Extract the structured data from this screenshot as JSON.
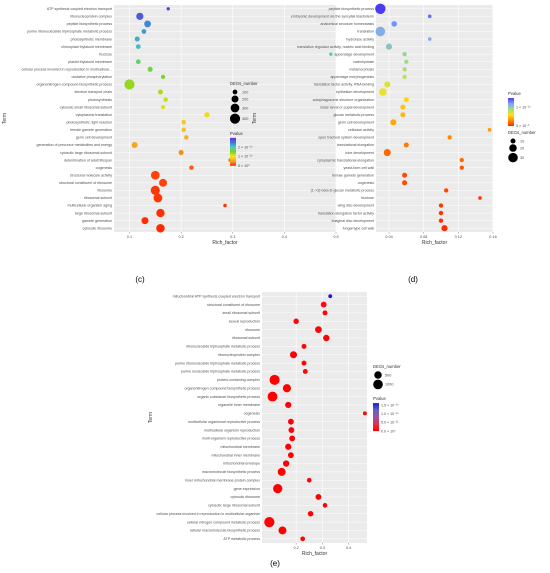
{
  "page": {
    "background": "#ffffff"
  },
  "style": {
    "panel_bg": "#ebebeb",
    "grid_color": "#ffffff",
    "text_color": "#4d4d4d",
    "gradient_c": [
      "#6b2bdc",
      "#3c78d8",
      "#45d0c0",
      "#7ed321",
      "#f5e61c",
      "#f5a623",
      "#ff2a00"
    ],
    "gradient_d": [
      "#4a3cf0",
      "#7ea1ff",
      "#9ae07e",
      "#ffe11c",
      "#ff8a00",
      "#ff2a00"
    ],
    "gradient_e": [
      "#1a1ad4",
      "#6060c8",
      "#a050a0",
      "#e0304a",
      "#ff0000"
    ]
  },
  "chart_data": [
    {
      "id": "c",
      "type": "scatter",
      "panel_label": "(c)",
      "xlabel": "Rich_factor",
      "ylabel": "Term",
      "xlim": [
        0.07,
        0.5
      ],
      "xticks": [
        0.1,
        0.2,
        0.3,
        0.4,
        0.5
      ],
      "color_scale": {
        "title": "Pvalue",
        "min": 0,
        "max": 3e-10,
        "ticks": [
          {
            "value": 2e-10,
            "label": "2 × 10⁻¹⁰"
          },
          {
            "value": 1e-10,
            "label": "1 × 10⁻¹⁰"
          },
          {
            "value": 0,
            "label": "5 × 10⁰"
          }
        ]
      },
      "size_scale": {
        "title": "DEGs_number",
        "min": 50,
        "max": 420,
        "ticks": [
          100,
          200,
          300,
          400
        ]
      },
      "points": [
        {
          "term": "ATP synthesis coupled electron transport",
          "x": 0.175,
          "count": 55,
          "p": 2.9e-10
        },
        {
          "term": "ribonucleoprotein complex",
          "x": 0.12,
          "count": 210,
          "p": 2.7e-10
        },
        {
          "term": "peptide biosynthetic process",
          "x": 0.135,
          "count": 190,
          "p": 2.4e-10
        },
        {
          "term": "purine ribonucleoside triphosphate metabolic process",
          "x": 0.128,
          "count": 100,
          "p": 2.3e-10
        },
        {
          "term": "photosynthetic membrane",
          "x": 0.115,
          "count": 110,
          "p": 2.2e-10
        },
        {
          "term": "chloroplast thylakoid membrane",
          "x": 0.117,
          "count": 100,
          "p": 2.1e-10
        },
        {
          "term": "fructose",
          "x": 0.49,
          "count": 55,
          "p": 1.9e-10
        },
        {
          "term": "plastid thylakoid membrane",
          "x": 0.117,
          "count": 100,
          "p": 1.75e-10
        },
        {
          "term": "cellular process involved in reproduction in multicellular...",
          "x": 0.14,
          "count": 110,
          "p": 1.6e-10
        },
        {
          "term": "oxidative phosphorylation",
          "x": 0.165,
          "count": 80,
          "p": 1.5e-10
        },
        {
          "term": "organonitrogen compound biosynthetic process",
          "x": 0.1,
          "count": 400,
          "p": 1.4e-10
        },
        {
          "term": "electron transport chain",
          "x": 0.16,
          "count": 110,
          "p": 1.3e-10
        },
        {
          "term": "photosynthesis",
          "x": 0.17,
          "count": 90,
          "p": 1.2e-10
        },
        {
          "term": "cytosolic small ribosomal subunit",
          "x": 0.165,
          "count": 80,
          "p": 1.1e-10
        },
        {
          "term": "cytoplasmic translation",
          "x": 0.25,
          "count": 120,
          "p": 9e-11
        },
        {
          "term": "photosynthetic, light reaction",
          "x": 0.205,
          "count": 100,
          "p": 8e-11
        },
        {
          "term": "female gamete generation",
          "x": 0.205,
          "count": 90,
          "p": 7e-11
        },
        {
          "term": "germ cell development",
          "x": 0.21,
          "count": 90,
          "p": 6e-11
        },
        {
          "term": "generation of precursor metabolites and energy",
          "x": 0.11,
          "count": 150,
          "p": 5e-11
        },
        {
          "term": "cytosolic large ribosomal subunit",
          "x": 0.2,
          "count": 110,
          "p": 4e-11
        },
        {
          "term": "determination of adult lifespan",
          "x": 0.295,
          "count": 60,
          "p": 2.5e-11
        },
        {
          "term": "oogenesis",
          "x": 0.22,
          "count": 90,
          "p": 2e-11
        },
        {
          "term": "structural molecule activity",
          "x": 0.15,
          "count": 300,
          "p": 1e-11
        },
        {
          "term": "structural constituent of ribosome",
          "x": 0.165,
          "count": 250,
          "p": 1e-11
        },
        {
          "term": "ribosome",
          "x": 0.15,
          "count": 330,
          "p": 5e-12
        },
        {
          "term": "ribosomal subunit",
          "x": 0.155,
          "count": 310,
          "p": 5e-12
        },
        {
          "term": "multicellular organism aging",
          "x": 0.285,
          "count": 60,
          "p": 5e-12
        },
        {
          "term": "large ribosomal subunit",
          "x": 0.16,
          "count": 280,
          "p": 2e-12
        },
        {
          "term": "gamete generation",
          "x": 0.13,
          "count": 200,
          "p": 1e-12
        },
        {
          "term": "cytosolic ribosome",
          "x": 0.16,
          "count": 290,
          "p": 0.0
        }
      ]
    },
    {
      "id": "d",
      "type": "scatter",
      "panel_label": "(d)",
      "xlabel": "Rich_factor",
      "ylabel": "Term",
      "xlim": [
        0.025,
        0.16
      ],
      "xticks": [
        0.04,
        0.08,
        0.12,
        0.16
      ],
      "color_scale": {
        "title": "Pvalue",
        "min": 0,
        "max": 1.5e-10,
        "ticks": [
          {
            "value": 1e-10,
            "label": "1 × 10⁻¹⁰"
          },
          {
            "value": 0,
            "label": "5 × 10⁻⁵"
          }
        ]
      },
      "size_scale": {
        "title": "DEGs_number",
        "min": 5,
        "max": 35,
        "ticks": [
          10,
          20,
          30
        ]
      },
      "points": [
        {
          "term": "peptide biosynthetic process",
          "x": 0.03,
          "count": 35,
          "p": 1.5e-10
        },
        {
          "term": "embryonic development via the syncytial blastoderm",
          "x": 0.087,
          "count": 6,
          "p": 1.35e-10
        },
        {
          "term": "anatomical structure homeostasis",
          "x": 0.046,
          "count": 12,
          "p": 1.25e-10
        },
        {
          "term": "translation",
          "x": 0.03,
          "count": 30,
          "p": 1.15e-10
        },
        {
          "term": "hydrolase activity",
          "x": 0.087,
          "count": 6,
          "p": 1.15e-10
        },
        {
          "term": "translation regulator activity, nucleic acid binding",
          "x": 0.04,
          "count": 14,
          "p": 1.05e-10
        },
        {
          "term": "appendage development",
          "x": 0.058,
          "count": 8,
          "p": 9.5e-11
        },
        {
          "term": "carbohydrate",
          "x": 0.06,
          "count": 8,
          "p": 9e-11
        },
        {
          "term": "metamorphosis",
          "x": 0.058,
          "count": 8,
          "p": 8.5e-11
        },
        {
          "term": "appendage morphogenesis",
          "x": 0.058,
          "count": 8,
          "p": 8e-11
        },
        {
          "term": "translation factor activity, RNA binding",
          "x": 0.038,
          "count": 14,
          "p": 7e-11
        },
        {
          "term": "epithelium development",
          "x": 0.033,
          "count": 20,
          "p": 6.5e-11
        },
        {
          "term": "autophagosome structure organization",
          "x": 0.06,
          "count": 10,
          "p": 5.5e-11
        },
        {
          "term": "instar larval or pupal development",
          "x": 0.056,
          "count": 10,
          "p": 5e-11
        },
        {
          "term": "glucan metabolic process",
          "x": 0.056,
          "count": 10,
          "p": 4.5e-11
        },
        {
          "term": "germ cell development",
          "x": 0.045,
          "count": 14,
          "p": 4e-11
        },
        {
          "term": "cellulase activity",
          "x": 0.156,
          "count": 6,
          "p": 3.5e-11
        },
        {
          "term": "open tracheal system development",
          "x": 0.11,
          "count": 8,
          "p": 3e-11
        },
        {
          "term": "translational elongation",
          "x": 0.06,
          "count": 10,
          "p": 2.5e-11
        },
        {
          "term": "tube development",
          "x": 0.038,
          "count": 18,
          "p": 2e-11
        },
        {
          "term": "cytoplasmic translational elongation",
          "x": 0.124,
          "count": 8,
          "p": 2e-11
        },
        {
          "term": "yeast-form cell wall",
          "x": 0.124,
          "count": 8,
          "p": 1.5e-11
        },
        {
          "term": "female gamete generation",
          "x": 0.058,
          "count": 10,
          "p": 1e-11
        },
        {
          "term": "oogenesis",
          "x": 0.058,
          "count": 10,
          "p": 1e-11
        },
        {
          "term": "(1->3)-beta-D-glucan metabolic process",
          "x": 0.106,
          "count": 8,
          "p": 8e-12
        },
        {
          "term": "fructose",
          "x": 0.145,
          "count": 6,
          "p": 5e-12
        },
        {
          "term": "wing disc development",
          "x": 0.1,
          "count": 8,
          "p": 4e-12
        },
        {
          "term": "translation elongation factor activity",
          "x": 0.1,
          "count": 8,
          "p": 3e-12
        },
        {
          "term": "imaginal disc development",
          "x": 0.1,
          "count": 8,
          "p": 2e-12
        },
        {
          "term": "fungal-type cell wall",
          "x": 0.104,
          "count": 14,
          "p": 0.0
        }
      ]
    },
    {
      "id": "e",
      "type": "scatter",
      "panel_label": "(e)",
      "xlabel": "Rich_factor",
      "ylabel": "Term",
      "xlim": [
        0.07,
        0.47
      ],
      "xticks": [
        0.2,
        0.3,
        0.4
      ],
      "color_scale": {
        "title": "Pvalue",
        "min": 0,
        "max": 1.6e-10,
        "ticks": [
          {
            "value": 1.5e-10,
            "label": "1.5 × 10⁻¹⁰"
          },
          {
            "value": 1e-10,
            "label": "1.0 × 10⁻¹⁰"
          },
          {
            "value": 5e-11,
            "label": "5.0 × 10⁻¹¹"
          },
          {
            "value": 0,
            "label": "0.0 × 10⁰"
          }
        ]
      },
      "size_scale": {
        "title": "DEGs_number",
        "min": 10,
        "max": 1200,
        "ticks": [
          500,
          1000
        ]
      },
      "points": [
        {
          "term": "mitochondrial ATP synthesis coupled electron transport",
          "x": 0.33,
          "count": 60,
          "p": 1.6e-10
        },
        {
          "term": "structural constituent of ribosome",
          "x": 0.305,
          "count": 250,
          "p": 1e-11
        },
        {
          "term": "small ribosomal subunit",
          "x": 0.31,
          "count": 150,
          "p": 5e-12
        },
        {
          "term": "sexual reproduction",
          "x": 0.2,
          "count": 200,
          "p": 5e-12
        },
        {
          "term": "ribosome",
          "x": 0.285,
          "count": 380,
          "p": 5e-12
        },
        {
          "term": "ribosomal subunit",
          "x": 0.315,
          "count": 330,
          "p": 2e-12
        },
        {
          "term": "ribonucleoside triphosphate metabolic process",
          "x": 0.23,
          "count": 150,
          "p": 5e-12
        },
        {
          "term": "ribonucleoprotein complex",
          "x": 0.19,
          "count": 420,
          "p": 2e-12
        },
        {
          "term": "purine ribonucleoside triphosphate metabolic process",
          "x": 0.23,
          "count": 140,
          "p": 5e-12
        },
        {
          "term": "purine nucleoside triphosphate metabolic process",
          "x": 0.235,
          "count": 140,
          "p": 5e-12
        },
        {
          "term": "protein-containing complex",
          "x": 0.118,
          "count": 1100,
          "p": 0.0
        },
        {
          "term": "organonitrogen compound biosynthetic process",
          "x": 0.165,
          "count": 650,
          "p": 0.0
        },
        {
          "term": "organic substance biosynthetic process",
          "x": 0.11,
          "count": 1050,
          "p": 0.0
        },
        {
          "term": "organelle inner membrane",
          "x": 0.17,
          "count": 300,
          "p": 2e-12
        },
        {
          "term": "oogenesis",
          "x": 0.462,
          "count": 60,
          "p": 5e-12
        },
        {
          "term": "multicellular organismal reproductive process",
          "x": 0.18,
          "count": 250,
          "p": 2e-12
        },
        {
          "term": "multicellular organism reproduction",
          "x": 0.182,
          "count": 250,
          "p": 2e-12
        },
        {
          "term": "multi-organism reproductive process",
          "x": 0.185,
          "count": 250,
          "p": 2e-12
        },
        {
          "term": "mitochondrial membrane",
          "x": 0.17,
          "count": 300,
          "p": 2e-12
        },
        {
          "term": "mitochondrial inner membrane",
          "x": 0.18,
          "count": 250,
          "p": 2e-12
        },
        {
          "term": "mitochondrial envelope",
          "x": 0.162,
          "count": 320,
          "p": 2e-12
        },
        {
          "term": "macromolecule biosynthetic process",
          "x": 0.145,
          "count": 600,
          "p": 0.0
        },
        {
          "term": "inner mitochondrial membrane protein complex",
          "x": 0.25,
          "count": 120,
          "p": 5e-12
        },
        {
          "term": "gene expression",
          "x": 0.13,
          "count": 900,
          "p": 0.0
        },
        {
          "term": "cytosolic ribosome",
          "x": 0.285,
          "count": 250,
          "p": 2e-12
        },
        {
          "term": "cytosolic large ribosomal subunit",
          "x": 0.31,
          "count": 120,
          "p": 5e-12
        },
        {
          "term": "cellular process involved in reproduction in multicellular organism",
          "x": 0.255,
          "count": 200,
          "p": 2e-12
        },
        {
          "term": "cellular nitrogen compound metabolic process",
          "x": 0.098,
          "count": 1150,
          "p": 0.0
        },
        {
          "term": "cellular macromolecule biosynthetic process",
          "x": 0.148,
          "count": 600,
          "p": 0.0
        },
        {
          "term": "ATP metabolic process",
          "x": 0.225,
          "count": 120,
          "p": 5e-12
        }
      ]
    }
  ]
}
